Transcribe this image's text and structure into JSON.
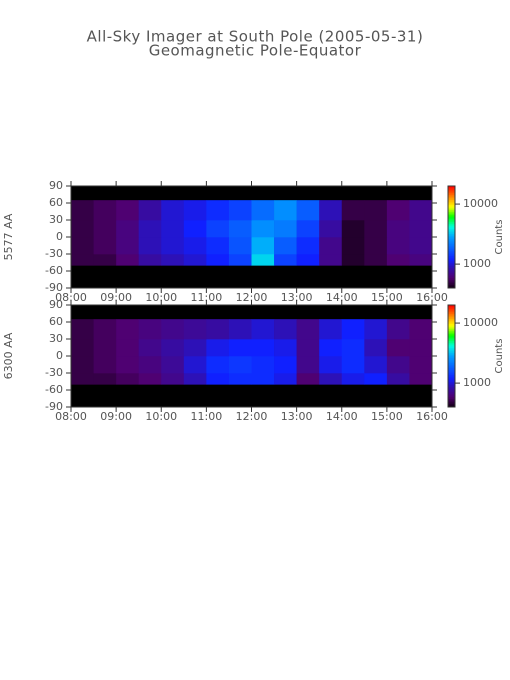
{
  "chart_data": [
    {
      "type": "heatmap",
      "title": "All-Sky Imager at South Pole (2005-05-31)",
      "subtitle": "Geomagnetic Pole-Equator",
      "ylabel": "5577 AA",
      "zlabel": "Counts",
      "xlim": [
        8,
        16
      ],
      "xticks": [
        {
          "value": 8,
          "label": "08:00"
        },
        {
          "value": 9,
          "label": "09:00"
        },
        {
          "value": 10,
          "label": "10:00"
        },
        {
          "value": 11,
          "label": "11:00"
        },
        {
          "value": 12,
          "label": "12:00"
        },
        {
          "value": 13,
          "label": "13:00"
        },
        {
          "value": 14,
          "label": "14:00"
        },
        {
          "value": 15,
          "label": "15:00"
        },
        {
          "value": 16,
          "label": "16:00"
        }
      ],
      "ylim": [
        -90,
        90
      ],
      "yticks": [
        -90,
        -60,
        -30,
        0,
        30,
        60,
        90
      ],
      "xbins": [
        8,
        8.5,
        9,
        9.5,
        10,
        10.5,
        11,
        11.5,
        12,
        12.5,
        13,
        13.5,
        14,
        14.5,
        15,
        15.5,
        16
      ],
      "ybins": [
        -50,
        -30,
        0,
        30,
        65
      ],
      "z": [
        [
          500,
          500,
          600,
          800,
          900,
          1000,
          1200,
          1500,
          3500,
          1500,
          1200,
          700,
          450,
          500,
          600,
          650
        ],
        [
          500,
          550,
          650,
          900,
          1000,
          1100,
          1300,
          1700,
          3000,
          1800,
          1300,
          700,
          450,
          500,
          650,
          700
        ],
        [
          500,
          550,
          650,
          900,
          1000,
          1200,
          1500,
          1800,
          2500,
          2200,
          1500,
          800,
          450,
          500,
          650,
          700
        ],
        [
          500,
          550,
          600,
          800,
          1000,
          1100,
          1300,
          1500,
          2000,
          2500,
          1800,
          900,
          500,
          500,
          600,
          700
        ]
      ],
      "zlim": [
        400,
        20000
      ],
      "zticks": [
        1000,
        10000
      ],
      "zlog": true
    },
    {
      "type": "heatmap",
      "ylabel": "6300 AA",
      "zlabel": "Counts",
      "xlim": [
        8,
        16
      ],
      "xticks": [
        {
          "value": 8,
          "label": "08:00"
        },
        {
          "value": 9,
          "label": "09:00"
        },
        {
          "value": 10,
          "label": "10:00"
        },
        {
          "value": 11,
          "label": "11:00"
        },
        {
          "value": 12,
          "label": "12:00"
        },
        {
          "value": 13,
          "label": "13:00"
        },
        {
          "value": 14,
          "label": "14:00"
        },
        {
          "value": 15,
          "label": "15:00"
        },
        {
          "value": 16,
          "label": "16:00"
        }
      ],
      "ylim": [
        -90,
        90
      ],
      "yticks": [
        -90,
        -60,
        -30,
        0,
        30,
        60,
        90
      ],
      "xbins": [
        8,
        8.5,
        9,
        9.5,
        10,
        10.5,
        11,
        11.5,
        12,
        12.5,
        13,
        13.5,
        14,
        14.5,
        15,
        15.5,
        16
      ],
      "ybins": [
        -50,
        -30,
        0,
        30,
        65
      ],
      "z": [
        [
          500,
          500,
          550,
          600,
          700,
          900,
          1200,
          1300,
          1300,
          1100,
          600,
          900,
          1100,
          1200,
          800,
          600
        ],
        [
          500,
          550,
          600,
          650,
          750,
          1000,
          1300,
          1400,
          1300,
          1200,
          700,
          1100,
          1300,
          1000,
          700,
          600
        ],
        [
          500,
          550,
          600,
          700,
          800,
          900,
          1100,
          1200,
          1200,
          1100,
          700,
          1200,
          1300,
          900,
          600,
          600
        ],
        [
          500,
          550,
          600,
          650,
          700,
          750,
          800,
          900,
          1000,
          900,
          700,
          1000,
          1200,
          1000,
          700,
          600
        ]
      ],
      "zlim": [
        400,
        20000
      ],
      "zticks": [
        1000,
        10000
      ],
      "zlog": true
    }
  ]
}
